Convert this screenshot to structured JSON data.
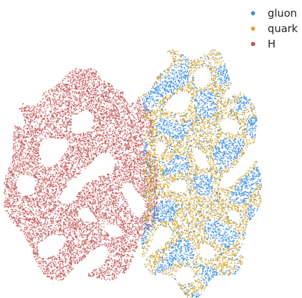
{
  "chart_data": {
    "type": "scatter",
    "title": "",
    "xlabel": "",
    "ylabel": "",
    "axes_visible": false,
    "grid": false,
    "legend_position": "top-right",
    "series": [
      {
        "name": "gluon",
        "color": "#3d8fe0"
      },
      {
        "name": "quark",
        "color": "#d9a62e"
      },
      {
        "name": "H",
        "color": "#c24f4f"
      }
    ],
    "description_note": ""
  }
}
